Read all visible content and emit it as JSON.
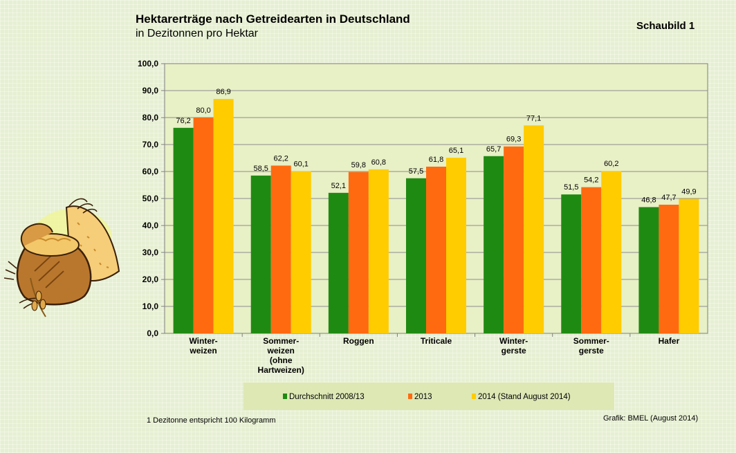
{
  "title": "Hektarerträge nach Getreidearten in Deutschland",
  "subtitle": "in Dezitonnen pro Hektar",
  "badge": "Schaubild 1",
  "footnote": "1 Dezitonne entspricht 100 Kilogramm",
  "credit": "Grafik: BMEL (August 2014)",
  "chart_data": {
    "type": "bar",
    "categories": [
      [
        "Winter-",
        "weizen"
      ],
      [
        "Sommer-",
        "weizen",
        "(ohne",
        "Hartweizen)"
      ],
      [
        "Roggen"
      ],
      [
        "Triticale"
      ],
      [
        "Winter-",
        "gerste"
      ],
      [
        "Sommer-",
        "gerste"
      ],
      [
        "Hafer"
      ]
    ],
    "series": [
      {
        "name": "Durchschnitt 2008/13",
        "color": "#1f8a12",
        "values": [
          76.2,
          58.5,
          52.1,
          57.5,
          65.7,
          51.5,
          46.8
        ],
        "labels": [
          "76,2",
          "58,5",
          "52,1",
          "57,5",
          "65,7",
          "51,5",
          "46,8"
        ]
      },
      {
        "name": "2013",
        "color": "#ff6a10",
        "values": [
          80.0,
          62.2,
          59.8,
          61.8,
          69.3,
          54.2,
          47.7
        ],
        "labels": [
          "80,0",
          "62,2",
          "59,8",
          "61,8",
          "69,3",
          "54,2",
          "47,7"
        ]
      },
      {
        "name": "2014 (Stand August 2014)",
        "color": "#ffcc00",
        "values": [
          86.9,
          60.1,
          60.8,
          65.1,
          77.1,
          60.2,
          49.9
        ],
        "labels": [
          "86,9",
          "60,1",
          "60,8",
          "65,1",
          "77,1",
          "60,2",
          "49,9"
        ]
      }
    ],
    "ylim": [
      0,
      100
    ],
    "yticks": [
      "0,0",
      "10,0",
      "20,0",
      "30,0",
      "40,0",
      "50,0",
      "60,0",
      "70,0",
      "80,0",
      "90,0",
      "100,0"
    ],
    "grid": true,
    "legend_position": "bottom",
    "plot_background": "#e8f0c6"
  },
  "illustration": {
    "icon": "grain-sack-icon"
  }
}
